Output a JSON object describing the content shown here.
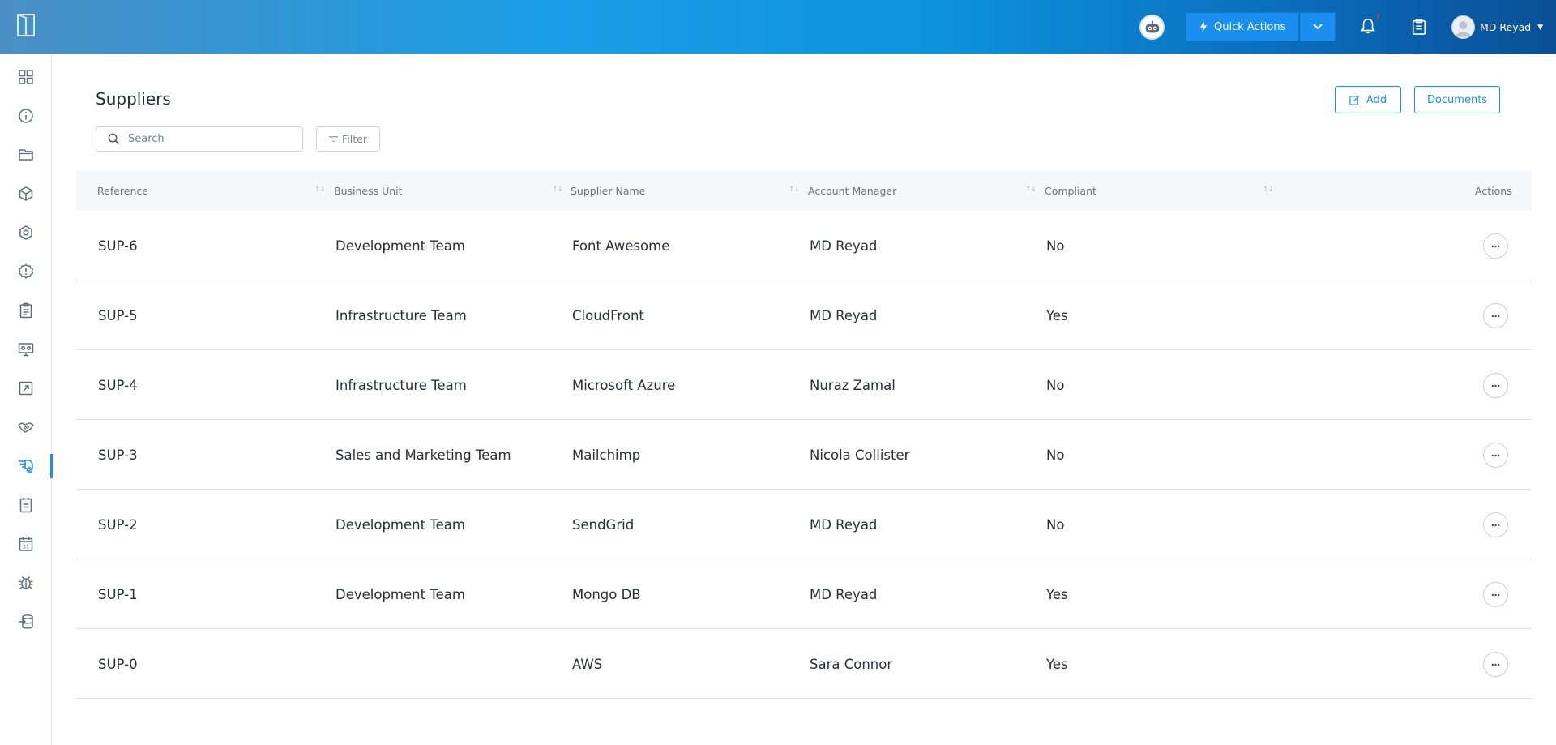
{
  "header": {
    "quick_actions_label": "Quick Actions",
    "notification_count": "7",
    "user_name": "MD Reyad"
  },
  "sidebar": {
    "items": [
      {
        "icon": "dashboard-icon"
      },
      {
        "icon": "info-icon"
      },
      {
        "icon": "folder-icon"
      },
      {
        "icon": "box-icon"
      },
      {
        "icon": "hexagon-icon"
      },
      {
        "icon": "alert-icon"
      },
      {
        "icon": "clipboard-icon"
      },
      {
        "icon": "monitor-icon"
      },
      {
        "icon": "export-icon"
      },
      {
        "icon": "handshake-icon"
      },
      {
        "icon": "suppliers-icon",
        "active": true
      },
      {
        "icon": "document-icon"
      },
      {
        "icon": "calendar-icon"
      },
      {
        "icon": "bug-icon"
      },
      {
        "icon": "database-import-icon"
      }
    ]
  },
  "page": {
    "title": "Suppliers",
    "add_label": "Add",
    "documents_label": "Documents",
    "search_placeholder": "Search",
    "filter_label": "Filter"
  },
  "table": {
    "columns": [
      "Reference",
      "Business Unit",
      "Supplier Name",
      "Account Manager",
      "Compliant",
      "Actions"
    ],
    "rows": [
      {
        "reference": "SUP-6",
        "business_unit": "Development Team",
        "supplier_name": "Font Awesome",
        "account_manager": "MD Reyad",
        "compliant": "No"
      },
      {
        "reference": "SUP-5",
        "business_unit": "Infrastructure Team",
        "supplier_name": "CloudFront",
        "account_manager": "MD Reyad",
        "compliant": "Yes"
      },
      {
        "reference": "SUP-4",
        "business_unit": "Infrastructure Team",
        "supplier_name": "Microsoft Azure",
        "account_manager": "Nuraz Zamal",
        "compliant": "No"
      },
      {
        "reference": "SUP-3",
        "business_unit": "Sales and Marketing Team",
        "supplier_name": "Mailchimp",
        "account_manager": "Nicola Collister",
        "compliant": "No"
      },
      {
        "reference": "SUP-2",
        "business_unit": "Development Team",
        "supplier_name": "SendGrid",
        "account_manager": "MD Reyad",
        "compliant": "No"
      },
      {
        "reference": "SUP-1",
        "business_unit": "Development Team",
        "supplier_name": "Mongo DB",
        "account_manager": "MD Reyad",
        "compliant": "Yes"
      },
      {
        "reference": "SUP-0",
        "business_unit": "",
        "supplier_name": "AWS",
        "account_manager": "Sara Connor",
        "compliant": "Yes"
      }
    ]
  },
  "colors": {
    "accent": "#1b8ff0",
    "topbar_start": "#4a8fc4",
    "topbar_end": "#0a4f96"
  }
}
